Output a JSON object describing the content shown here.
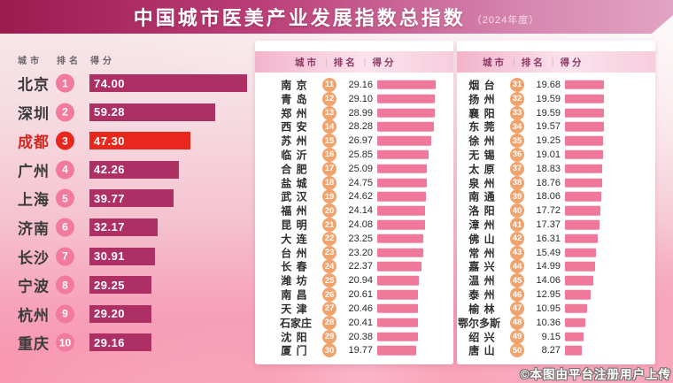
{
  "title": {
    "main": "中国城市医美产业发展指数总指数",
    "year": "（2024年度）"
  },
  "columns": {
    "city": "城市",
    "rank": "排名",
    "score": "得分",
    "divider": "|"
  },
  "watermark": "©本图由平台注册用户上传",
  "colors": {
    "banner_from": "#9c1b4f",
    "banner_to": "#e2a3c2",
    "bar_top10": "#ad2f63",
    "badge_top10": "#f27a9e",
    "highlight_bar": "#e8271d",
    "highlight_badge": "#e8271d",
    "highlight_text": "#d3281f",
    "bar_small": "#f0789b",
    "badge_small": "#f1a36e"
  },
  "chart_data": {
    "type": "bar",
    "orientation": "horizontal",
    "title": "中国城市医美产业发展指数总指数",
    "subtitle": "（2024年度）",
    "value_label": "得分",
    "xlim": [
      0,
      74
    ],
    "grid": false,
    "legend": false,
    "highlight": {
      "city": "成都",
      "rank": 3
    },
    "panels": [
      {
        "name": "rank-1-10",
        "rows": [
          {
            "city": "北京",
            "rank": 1,
            "score": 74.0
          },
          {
            "city": "深圳",
            "rank": 2,
            "score": 59.28
          },
          {
            "city": "成都",
            "rank": 3,
            "score": 47.3
          },
          {
            "city": "广州",
            "rank": 4,
            "score": 42.26
          },
          {
            "city": "上海",
            "rank": 5,
            "score": 39.77
          },
          {
            "city": "济南",
            "rank": 6,
            "score": 32.17
          },
          {
            "city": "长沙",
            "rank": 7,
            "score": 30.91
          },
          {
            "city": "宁波",
            "rank": 8,
            "score": 29.25
          },
          {
            "city": "杭州",
            "rank": 9,
            "score": 29.2
          },
          {
            "city": "重庆",
            "rank": 10,
            "score": 29.16
          }
        ]
      },
      {
        "name": "rank-11-30",
        "rows": [
          {
            "city": "南京",
            "rank": 11,
            "score": 29.16
          },
          {
            "city": "青岛",
            "rank": 12,
            "score": 29.1
          },
          {
            "city": "郑州",
            "rank": 13,
            "score": 28.99
          },
          {
            "city": "西安",
            "rank": 14,
            "score": 28.28
          },
          {
            "city": "苏州",
            "rank": 15,
            "score": 26.97
          },
          {
            "city": "临沂",
            "rank": 16,
            "score": 25.85
          },
          {
            "city": "合肥",
            "rank": 17,
            "score": 25.09
          },
          {
            "city": "盐城",
            "rank": 18,
            "score": 24.75
          },
          {
            "city": "武汉",
            "rank": 19,
            "score": 24.62
          },
          {
            "city": "福州",
            "rank": 20,
            "score": 24.14
          },
          {
            "city": "昆明",
            "rank": 21,
            "score": 24.08
          },
          {
            "city": "大连",
            "rank": 22,
            "score": 23.25
          },
          {
            "city": "台州",
            "rank": 23,
            "score": 23.2
          },
          {
            "city": "长春",
            "rank": 24,
            "score": 22.37
          },
          {
            "city": "潍坊",
            "rank": 25,
            "score": 20.94
          },
          {
            "city": "南昌",
            "rank": 26,
            "score": 20.61
          },
          {
            "city": "天津",
            "rank": 27,
            "score": 20.46
          },
          {
            "city": "石家庄",
            "rank": 28,
            "score": 20.41
          },
          {
            "city": "沈阳",
            "rank": 29,
            "score": 20.38
          },
          {
            "city": "厦门",
            "rank": 30,
            "score": 19.77
          }
        ]
      },
      {
        "name": "rank-31-50",
        "rows": [
          {
            "city": "烟台",
            "rank": 31,
            "score": 19.68
          },
          {
            "city": "扬州",
            "rank": 32,
            "score": 19.59
          },
          {
            "city": "襄阳",
            "rank": 33,
            "score": 19.59
          },
          {
            "city": "东莞",
            "rank": 34,
            "score": 19.57
          },
          {
            "city": "徐州",
            "rank": 35,
            "score": 19.25
          },
          {
            "city": "无锡",
            "rank": 36,
            "score": 19.01
          },
          {
            "city": "太原",
            "rank": 37,
            "score": 18.83
          },
          {
            "city": "泉州",
            "rank": 38,
            "score": 18.76
          },
          {
            "city": "南通",
            "rank": 39,
            "score": 18.06
          },
          {
            "city": "洛阳",
            "rank": 40,
            "score": 17.72
          },
          {
            "city": "漳州",
            "rank": 41,
            "score": 17.37
          },
          {
            "city": "佛山",
            "rank": 42,
            "score": 16.31
          },
          {
            "city": "常州",
            "rank": 43,
            "score": 15.49
          },
          {
            "city": "嘉兴",
            "rank": 44,
            "score": 14.99
          },
          {
            "city": "温州",
            "rank": 45,
            "score": 14.06
          },
          {
            "city": "泰州",
            "rank": 46,
            "score": 12.95
          },
          {
            "city": "榆林",
            "rank": 47,
            "score": 10.95
          },
          {
            "city": "鄂尔多斯",
            "rank": 48,
            "score": 10.36
          },
          {
            "city": "绍兴",
            "rank": 49,
            "score": 9.15
          },
          {
            "city": "唐山",
            "rank": 50,
            "score": 8.27
          }
        ]
      }
    ]
  }
}
